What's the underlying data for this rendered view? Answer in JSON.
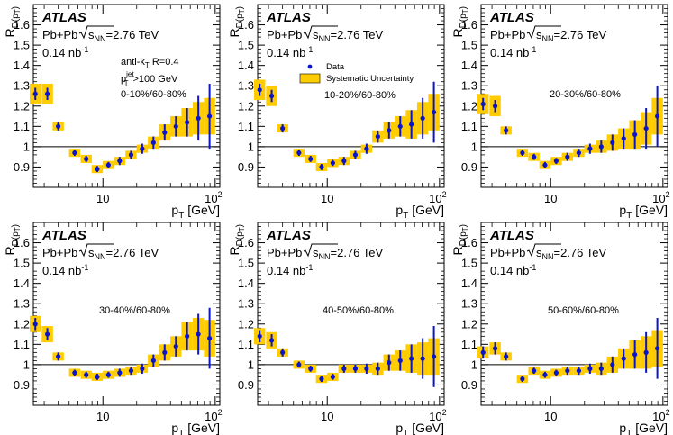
{
  "figure": {
    "experiment_label": "ATLAS",
    "system_label": "Pb+Pb",
    "energy_label": "=2.76 TeV",
    "sqrt_s_sub": "NN",
    "luminosity_label": "0.14 nb",
    "luminosity_sup": "-1",
    "jet_algo_label": "anti-k",
    "jet_algo_sub": "T",
    "jet_radius_label": " R=0.4",
    "jet_pt_label": "p",
    "jet_pt_sup": "jet",
    "jet_pt_sub": "T",
    "jet_pt_cut_label": ">100 GeV",
    "legend_data": "Data",
    "legend_sys": "Systematic Uncertainty",
    "ylabel_main": "R",
    "ylabel_sub": "D(p",
    "ylabel_subsub": "T",
    "ylabel_close": ")",
    "xlabel_main": "p",
    "xlabel_sub": "T",
    "xlabel_unit": " [GeV]",
    "colors": {
      "data": "#0a14c8",
      "systematic": "#ffcc00",
      "axis": "#000000"
    }
  },
  "chart_data": [
    {
      "type": "scatter",
      "title": "0-10%/60-80%",
      "xlabel": "pT [GeV]",
      "ylabel": "R_D(pT)",
      "xscale": "log",
      "xlim": [
        2.4,
        110
      ],
      "ylim": [
        0.8,
        1.7
      ],
      "x": [
        2.5,
        3.2,
        4.0,
        5.6,
        7.1,
        8.9,
        11.2,
        14.1,
        17.8,
        22.4,
        28.2,
        35.5,
        44.7,
        56.2,
        70.8,
        89.1
      ],
      "values": [
        1.26,
        1.26,
        1.1,
        0.97,
        0.94,
        0.89,
        0.91,
        0.93,
        0.96,
        0.99,
        1.02,
        1.07,
        1.1,
        1.12,
        1.14,
        1.15
      ],
      "stat_err": [
        0.03,
        0.03,
        0.02,
        0.015,
        0.015,
        0.015,
        0.015,
        0.02,
        0.02,
        0.025,
        0.03,
        0.04,
        0.05,
        0.07,
        0.11,
        0.16
      ],
      "sys_err": [
        0.05,
        0.05,
        0.02,
        0.02,
        0.02,
        0.02,
        0.02,
        0.02,
        0.02,
        0.02,
        0.03,
        0.04,
        0.05,
        0.07,
        0.08,
        0.09
      ]
    },
    {
      "type": "scatter",
      "title": "10-20%/60-80%",
      "xlabel": "pT [GeV]",
      "ylabel": "R_D(pT)",
      "xscale": "log",
      "xlim": [
        2.4,
        110
      ],
      "ylim": [
        0.8,
        1.7
      ],
      "x": [
        2.5,
        3.2,
        4.0,
        5.6,
        7.1,
        8.9,
        11.2,
        14.1,
        17.8,
        22.4,
        28.2,
        35.5,
        44.7,
        56.2,
        70.8,
        89.1
      ],
      "values": [
        1.28,
        1.25,
        1.09,
        0.97,
        0.94,
        0.9,
        0.92,
        0.93,
        0.96,
        0.99,
        1.05,
        1.08,
        1.1,
        1.11,
        1.14,
        1.17
      ],
      "stat_err": [
        0.03,
        0.03,
        0.02,
        0.015,
        0.015,
        0.015,
        0.015,
        0.02,
        0.02,
        0.025,
        0.03,
        0.04,
        0.05,
        0.07,
        0.1,
        0.15
      ],
      "sys_err": [
        0.05,
        0.05,
        0.02,
        0.02,
        0.02,
        0.02,
        0.02,
        0.02,
        0.02,
        0.02,
        0.03,
        0.04,
        0.05,
        0.07,
        0.08,
        0.09
      ]
    },
    {
      "type": "scatter",
      "title": "20-30%/60-80%",
      "xlabel": "pT [GeV]",
      "ylabel": "R_D(pT)",
      "xscale": "log",
      "xlim": [
        2.4,
        110
      ],
      "ylim": [
        0.8,
        1.7
      ],
      "x": [
        2.5,
        3.2,
        4.0,
        5.6,
        7.1,
        8.9,
        11.2,
        14.1,
        17.8,
        22.4,
        28.2,
        35.5,
        44.7,
        56.2,
        70.8,
        89.1
      ],
      "values": [
        1.21,
        1.2,
        1.08,
        0.97,
        0.95,
        0.91,
        0.93,
        0.95,
        0.97,
        0.99,
        1.0,
        1.02,
        1.04,
        1.06,
        1.09,
        1.15
      ],
      "stat_err": [
        0.03,
        0.03,
        0.02,
        0.015,
        0.015,
        0.015,
        0.015,
        0.02,
        0.02,
        0.025,
        0.03,
        0.04,
        0.05,
        0.07,
        0.1,
        0.15
      ],
      "sys_err": [
        0.05,
        0.05,
        0.02,
        0.02,
        0.02,
        0.02,
        0.02,
        0.02,
        0.02,
        0.02,
        0.03,
        0.04,
        0.05,
        0.07,
        0.08,
        0.09
      ]
    },
    {
      "type": "scatter",
      "title": "30-40%/60-80%",
      "xlabel": "pT [GeV]",
      "ylabel": "R_D(pT)",
      "xscale": "log",
      "xlim": [
        2.4,
        110
      ],
      "ylim": [
        0.8,
        1.7
      ],
      "x": [
        2.5,
        3.2,
        4.0,
        5.6,
        7.1,
        8.9,
        11.2,
        14.1,
        17.8,
        22.4,
        28.2,
        35.5,
        44.7,
        56.2,
        70.8,
        89.1
      ],
      "values": [
        1.2,
        1.15,
        1.04,
        0.96,
        0.95,
        0.94,
        0.95,
        0.96,
        0.97,
        0.98,
        1.02,
        1.06,
        1.09,
        1.14,
        1.15,
        1.13
      ],
      "stat_err": [
        0.03,
        0.03,
        0.02,
        0.015,
        0.015,
        0.015,
        0.015,
        0.02,
        0.02,
        0.025,
        0.03,
        0.04,
        0.05,
        0.07,
        0.1,
        0.15
      ],
      "sys_err": [
        0.04,
        0.04,
        0.02,
        0.02,
        0.02,
        0.02,
        0.02,
        0.02,
        0.02,
        0.02,
        0.03,
        0.04,
        0.05,
        0.07,
        0.08,
        0.09
      ]
    },
    {
      "type": "scatter",
      "title": "40-50%/60-80%",
      "xlabel": "pT [GeV]",
      "ylabel": "R_D(pT)",
      "xscale": "log",
      "xlim": [
        2.4,
        110
      ],
      "ylim": [
        0.8,
        1.7
      ],
      "x": [
        2.5,
        3.2,
        4.0,
        5.6,
        7.1,
        8.9,
        11.2,
        14.1,
        17.8,
        22.4,
        28.2,
        35.5,
        44.7,
        56.2,
        70.8,
        89.1
      ],
      "values": [
        1.14,
        1.12,
        1.06,
        1.0,
        0.98,
        0.93,
        0.94,
        0.98,
        0.98,
        0.98,
        0.98,
        1.01,
        1.02,
        1.03,
        1.03,
        1.04
      ],
      "stat_err": [
        0.03,
        0.03,
        0.02,
        0.015,
        0.015,
        0.015,
        0.015,
        0.02,
        0.02,
        0.025,
        0.03,
        0.04,
        0.05,
        0.07,
        0.1,
        0.15
      ],
      "sys_err": [
        0.04,
        0.04,
        0.02,
        0.02,
        0.02,
        0.02,
        0.02,
        0.02,
        0.02,
        0.02,
        0.03,
        0.04,
        0.05,
        0.07,
        0.08,
        0.09
      ]
    },
    {
      "type": "scatter",
      "title": "50-60%/60-80%",
      "xlabel": "pT [GeV]",
      "ylabel": "R_D(pT)",
      "xscale": "log",
      "xlim": [
        2.4,
        110
      ],
      "ylim": [
        0.8,
        1.7
      ],
      "x": [
        2.5,
        3.2,
        4.0,
        5.6,
        7.1,
        8.9,
        11.2,
        14.1,
        17.8,
        22.4,
        28.2,
        35.5,
        44.7,
        56.2,
        70.8,
        89.1
      ],
      "values": [
        1.06,
        1.08,
        1.04,
        0.93,
        0.97,
        0.95,
        0.96,
        0.97,
        0.97,
        0.98,
        0.98,
        1.0,
        1.03,
        1.05,
        1.06,
        1.08
      ],
      "stat_err": [
        0.03,
        0.03,
        0.02,
        0.015,
        0.015,
        0.015,
        0.015,
        0.02,
        0.02,
        0.025,
        0.03,
        0.04,
        0.05,
        0.07,
        0.1,
        0.15
      ],
      "sys_err": [
        0.03,
        0.03,
        0.02,
        0.02,
        0.02,
        0.02,
        0.02,
        0.02,
        0.02,
        0.02,
        0.03,
        0.04,
        0.05,
        0.07,
        0.08,
        0.09
      ]
    }
  ]
}
